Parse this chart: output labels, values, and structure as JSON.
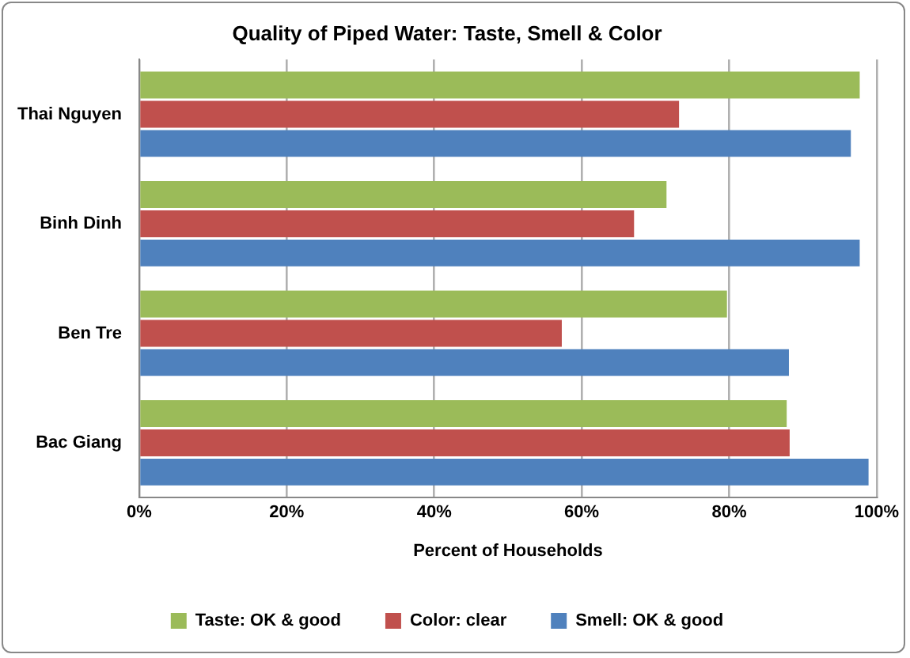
{
  "chart_data": {
    "type": "bar",
    "orientation": "horizontal",
    "title": "Quality of Piped Water: Taste, Smell & Color",
    "xlabel": "Percent of Households",
    "categories": [
      "Thai Nguyen",
      "Binh Dinh",
      "Ben Tre",
      "Bac Giang"
    ],
    "series": [
      {
        "name": "Taste: OK & good",
        "color": "#9bbb59",
        "values": [
          97.7,
          71.5,
          79.7,
          87.8
        ]
      },
      {
        "name": "Color: clear",
        "color": "#c0504d",
        "values": [
          73.2,
          67.1,
          57.3,
          88.2
        ]
      },
      {
        "name": "Smell: OK & good",
        "color": "#4f81bd",
        "values": [
          96.5,
          97.7,
          88.1,
          98.9
        ]
      }
    ],
    "xlim": [
      0,
      100
    ],
    "xticks": [
      {
        "value": 0,
        "label": "0%"
      },
      {
        "value": 20,
        "label": "20%"
      },
      {
        "value": 40,
        "label": "40%"
      },
      {
        "value": 60,
        "label": "60%"
      },
      {
        "value": 80,
        "label": "80%"
      },
      {
        "value": 100,
        "label": "100%"
      }
    ],
    "grid": "x",
    "legend": "bottom"
  }
}
